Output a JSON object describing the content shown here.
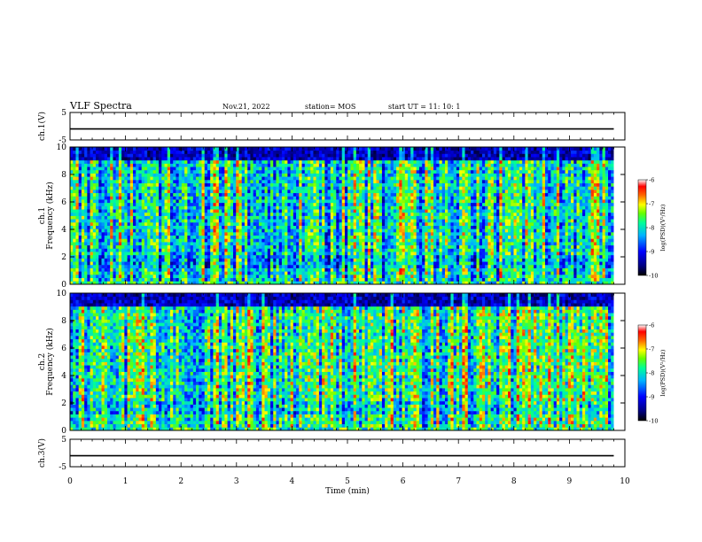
{
  "header": {
    "title": "VLF Spectra",
    "date": "Nov.21, 2022",
    "station": "station= MOS",
    "start_ut": "start  UT =  11: 10: 1"
  },
  "chart_data": [
    {
      "type": "line",
      "panel": "ch1-voltage",
      "ylabel": "ch.1(V)",
      "ylim": [
        -5,
        5
      ],
      "yticks": [
        "5",
        "-5"
      ],
      "x": [
        0,
        9.8
      ],
      "values": [
        -1,
        -1
      ]
    },
    {
      "type": "heatmap",
      "panel": "ch1-spectrogram",
      "ylabel": "ch.1\nFrequency  (kHz)",
      "ylabel_line1": "ch.1",
      "ylabel_line2": "Frequency  (kHz)",
      "ylim": [
        0,
        10
      ],
      "yticks": [
        "0",
        "2",
        "4",
        "6",
        "8",
        "10"
      ],
      "xlim": [
        0,
        10
      ],
      "data_xlim": [
        0,
        9.8
      ],
      "colorbar": {
        "label": "log(PSD)(V²/Hz)",
        "range": [
          -10,
          -6
        ],
        "ticks": [
          "-6",
          "-7",
          "-8",
          "-9",
          "-10"
        ]
      }
    },
    {
      "type": "heatmap",
      "panel": "ch2-spectrogram",
      "ylabel": "ch.2\nFrequency  (kHz)",
      "ylabel_line1": "ch.2",
      "ylabel_line2": "Frequency  (kHz)",
      "ylim": [
        0,
        10
      ],
      "yticks": [
        "0",
        "2",
        "4",
        "6",
        "8",
        "10"
      ],
      "xlim": [
        0,
        10
      ],
      "data_xlim": [
        0,
        9.8
      ],
      "colorbar": {
        "label": "log(PSD)(V²/Hz)",
        "range": [
          -10,
          -6
        ],
        "ticks": [
          "-6",
          "-7",
          "-8",
          "-9",
          "-10"
        ]
      }
    },
    {
      "type": "line",
      "panel": "ch3-voltage",
      "ylabel": "ch.3(V)",
      "ylim": [
        -5,
        5
      ],
      "yticks": [
        "5",
        "-5"
      ],
      "x": [
        0,
        9.8
      ],
      "values": [
        -1,
        -1
      ]
    }
  ],
  "xaxis": {
    "label": "Time  (min)",
    "range": [
      0,
      10
    ],
    "ticks": [
      "0",
      "1",
      "2",
      "3",
      "4",
      "5",
      "6",
      "7",
      "8",
      "9",
      "10"
    ]
  },
  "colors": {
    "colormap": [
      "#000000",
      "#000080",
      "#0000ff",
      "#00b4ff",
      "#00ff99",
      "#66ff00",
      "#ffff00",
      "#ff6600",
      "#ff0000",
      "#ffffff"
    ]
  }
}
